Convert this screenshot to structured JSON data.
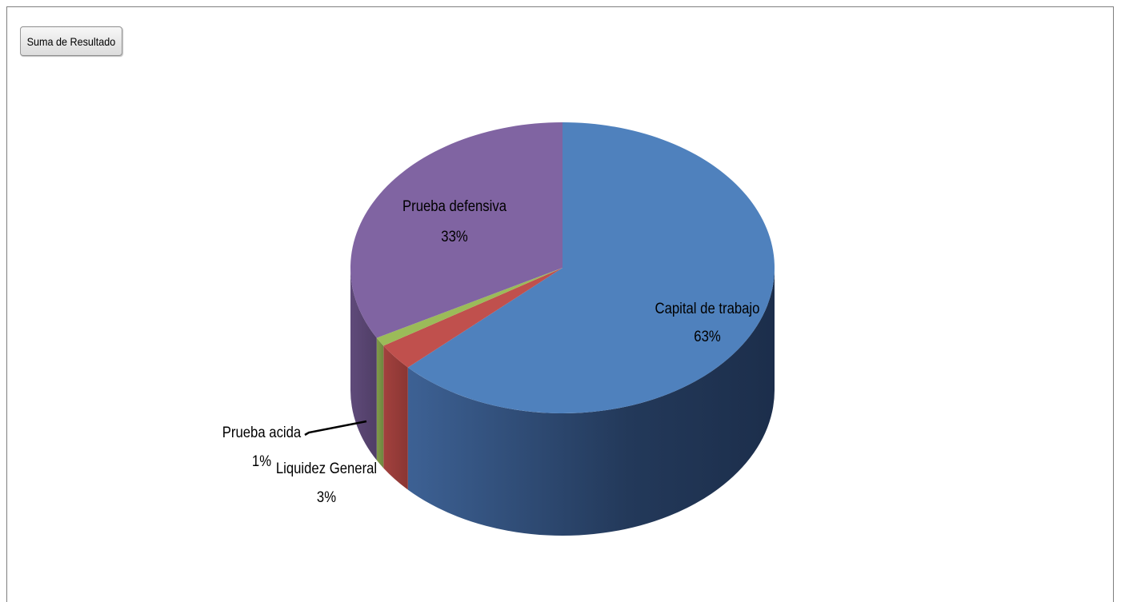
{
  "field_button": {
    "label": "Suma de Resultado"
  },
  "chart_data": {
    "type": "pie",
    "style": "3d",
    "categories": [
      "Capital de trabajo",
      "Liquidez General",
      "Prueba acida",
      "Prueba defensiva"
    ],
    "values": [
      63,
      3,
      1,
      33
    ],
    "value_labels": [
      "63%",
      "3%",
      "1%",
      "33%"
    ],
    "colors": [
      "#4f81bd",
      "#c0504d",
      "#9bbb59",
      "#8064a2"
    ],
    "legend": "none"
  }
}
